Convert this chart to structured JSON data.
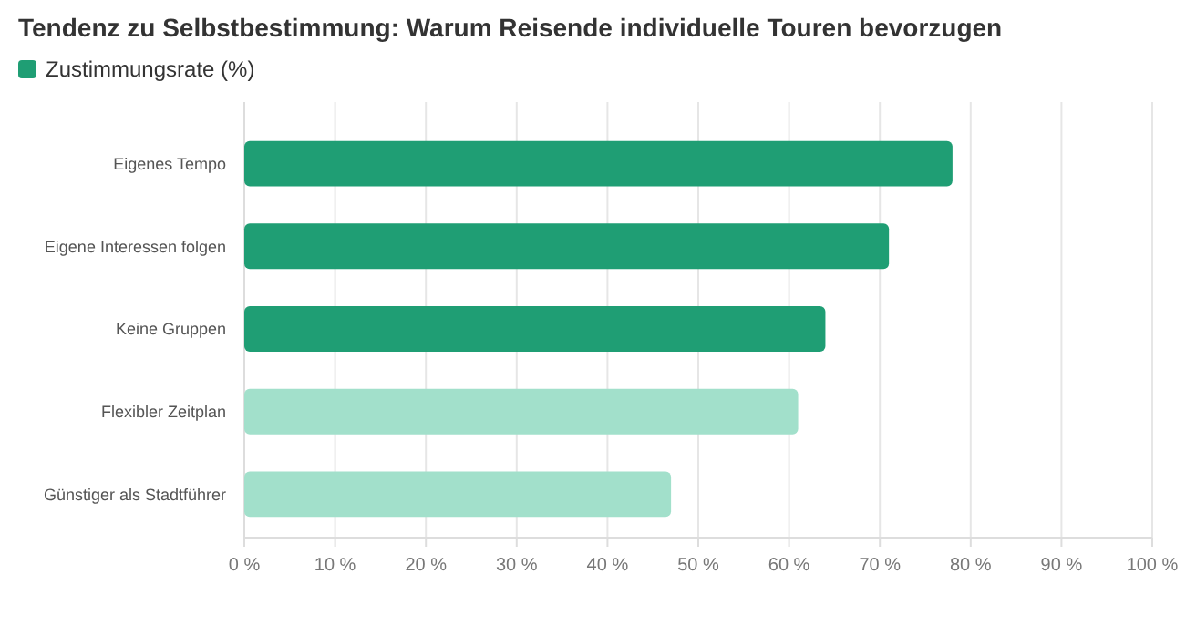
{
  "chart_data": {
    "type": "bar",
    "orientation": "horizontal",
    "title": "Tendenz zu Selbstbestimmung: Warum Reisende individuelle Touren bevorzugen",
    "categories": [
      "Eigenes Tempo",
      "Eigene Interessen folgen",
      "Keine Gruppen",
      "Flexibler Zeitplan",
      "Günstiger als Stadtführer"
    ],
    "series": [
      {
        "name": "Zustimmungsrate (%)",
        "color": "#1f9e74",
        "colors": [
          "#1f9e74",
          "#1f9e74",
          "#1f9e74",
          "#a2e0cb",
          "#a2e0cb"
        ],
        "values": [
          78,
          71,
          64,
          61,
          47
        ]
      }
    ],
    "xlim": [
      0,
      100
    ],
    "xticks": [
      {
        "value": 0,
        "label": "0 %"
      },
      {
        "value": 10,
        "label": "10 %"
      },
      {
        "value": 20,
        "label": "20 %"
      },
      {
        "value": 30,
        "label": "30 %"
      },
      {
        "value": 40,
        "label": "40 %"
      },
      {
        "value": 50,
        "label": "50 %"
      },
      {
        "value": 60,
        "label": "60 %"
      },
      {
        "value": 70,
        "label": "70 %"
      },
      {
        "value": 80,
        "label": "80 %"
      },
      {
        "value": 90,
        "label": "90 %"
      },
      {
        "value": 100,
        "label": "100 %"
      }
    ],
    "grid": "x",
    "legend": "top left"
  }
}
